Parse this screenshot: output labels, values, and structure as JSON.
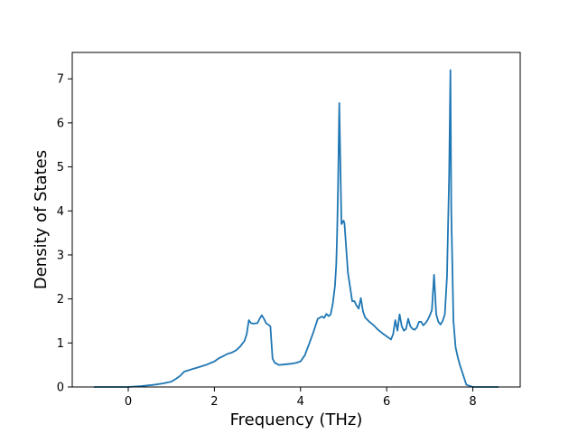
{
  "chart_data": {
    "type": "line",
    "title": "",
    "xlabel": "Frequency (THz)",
    "ylabel": "Density of States",
    "xlim": [
      -1.3,
      9.1
    ],
    "ylim": [
      0,
      7.6
    ],
    "xticks": [
      0,
      2,
      4,
      6,
      8
    ],
    "yticks": [
      0,
      1,
      2,
      3,
      4,
      5,
      6,
      7
    ],
    "grid": false,
    "legend": "none",
    "series": [
      {
        "color": "#1f77b4",
        "x": [
          -0.8,
          -0.4,
          0.0,
          0.3,
          0.6,
          0.8,
          1.0,
          1.1,
          1.2,
          1.3,
          1.4,
          1.5,
          1.6,
          1.8,
          2.0,
          2.1,
          2.2,
          2.3,
          2.4,
          2.5,
          2.6,
          2.7,
          2.75,
          2.8,
          2.85,
          2.9,
          3.0,
          3.05,
          3.1,
          3.15,
          3.2,
          3.3,
          3.35,
          3.4,
          3.5,
          3.6,
          3.7,
          3.8,
          3.9,
          4.0,
          4.1,
          4.2,
          4.3,
          4.4,
          4.5,
          4.55,
          4.6,
          4.65,
          4.7,
          4.75,
          4.8,
          4.83,
          4.85,
          4.87,
          4.9,
          4.95,
          5.0,
          5.02,
          5.1,
          5.2,
          5.25,
          5.3,
          5.35,
          5.4,
          5.45,
          5.5,
          5.6,
          5.7,
          5.8,
          5.9,
          6.0,
          6.1,
          6.15,
          6.2,
          6.25,
          6.3,
          6.35,
          6.4,
          6.45,
          6.5,
          6.55,
          6.6,
          6.65,
          6.7,
          6.75,
          6.8,
          6.85,
          6.9,
          6.95,
          7.0,
          7.05,
          7.1,
          7.15,
          7.2,
          7.25,
          7.3,
          7.35,
          7.4,
          7.45,
          7.48,
          7.5,
          7.55,
          7.6,
          7.65,
          7.7,
          7.75,
          7.8,
          7.85,
          8.0,
          8.3,
          8.6
        ],
        "y": [
          0.0,
          0.0,
          0.0,
          0.02,
          0.05,
          0.08,
          0.12,
          0.18,
          0.25,
          0.35,
          0.38,
          0.41,
          0.44,
          0.5,
          0.58,
          0.65,
          0.7,
          0.75,
          0.78,
          0.83,
          0.92,
          1.05,
          1.2,
          1.52,
          1.45,
          1.44,
          1.45,
          1.55,
          1.63,
          1.55,
          1.45,
          1.38,
          0.65,
          0.55,
          0.5,
          0.51,
          0.52,
          0.53,
          0.55,
          0.58,
          0.72,
          0.98,
          1.25,
          1.55,
          1.6,
          1.57,
          1.66,
          1.61,
          1.65,
          1.9,
          2.3,
          2.8,
          3.5,
          4.5,
          6.45,
          3.7,
          3.78,
          3.72,
          2.6,
          1.95,
          1.95,
          1.85,
          1.78,
          2.02,
          1.72,
          1.58,
          1.48,
          1.4,
          1.3,
          1.22,
          1.15,
          1.08,
          1.2,
          1.52,
          1.28,
          1.65,
          1.38,
          1.28,
          1.32,
          1.55,
          1.38,
          1.32,
          1.3,
          1.35,
          1.48,
          1.48,
          1.4,
          1.45,
          1.52,
          1.62,
          1.75,
          2.55,
          1.65,
          1.48,
          1.42,
          1.5,
          1.65,
          2.5,
          4.8,
          7.2,
          4.0,
          1.5,
          0.9,
          0.68,
          0.5,
          0.35,
          0.2,
          0.05,
          0.0,
          0.0,
          0.0
        ]
      }
    ]
  }
}
